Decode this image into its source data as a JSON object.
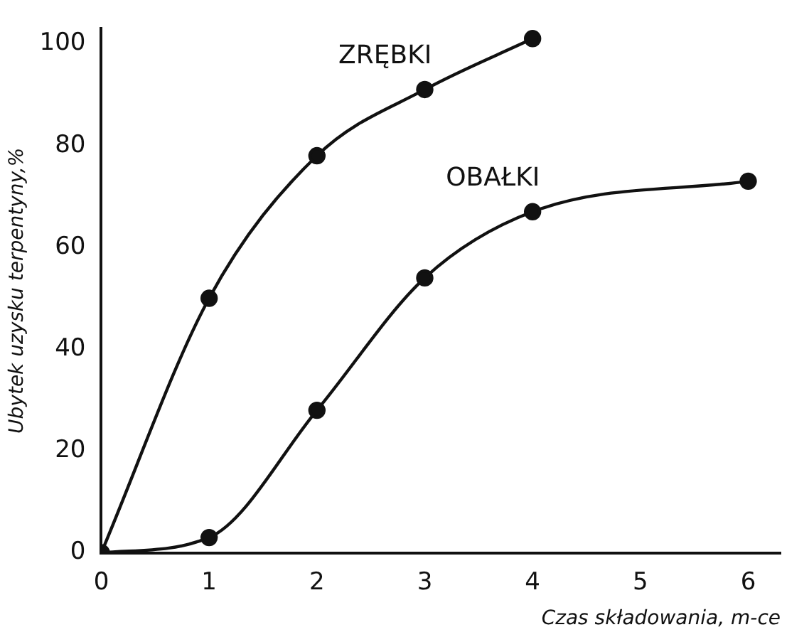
{
  "chart_data": {
    "type": "line",
    "xlabel": "Czas składowania, m-ce",
    "ylabel": "Ubytek uzysku terpentyny,%",
    "series": [
      {
        "name": "ZRĘBKI",
        "color": "#111111",
        "x": [
          0,
          1,
          2,
          3,
          4
        ],
        "values": [
          0,
          50,
          78,
          91,
          101
        ]
      },
      {
        "name": "OBAŁKI",
        "color": "#111111",
        "x": [
          0,
          1,
          2,
          3,
          4,
          6
        ],
        "values": [
          0,
          3,
          28,
          54,
          67,
          73
        ]
      }
    ],
    "xlim": [
      0,
      6.3
    ],
    "xticks": [
      0,
      1,
      2,
      3,
      4,
      5,
      6
    ],
    "ylim": [
      0,
      103
    ],
    "yticks": [
      0,
      20,
      40,
      60,
      80,
      100
    ],
    "grid": false,
    "legend": false,
    "marker": "circle",
    "line_style": "solid"
  }
}
